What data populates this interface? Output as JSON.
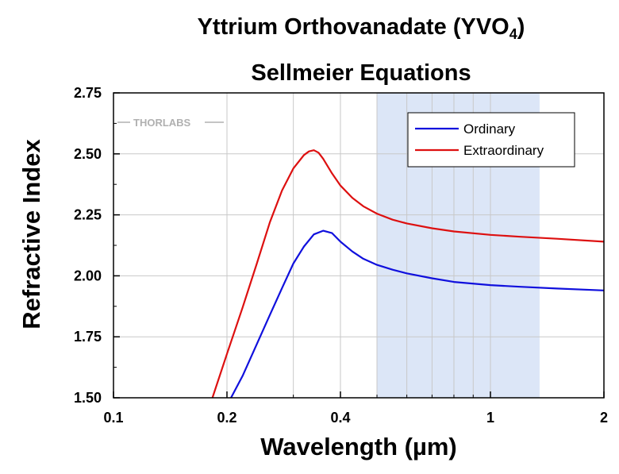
{
  "chart_data": {
    "type": "line",
    "title": "Yttrium Orthovanadate (YVO",
    "title_subscript": "4",
    "title_suffix": ")",
    "subtitle": "Sellmeier Equations",
    "xlabel": "Wavelength (µm)",
    "ylabel": "Refractive Index",
    "xscale": "log",
    "xlim": [
      0.1,
      2
    ],
    "ylim": [
      1.5,
      2.75
    ],
    "x_ticks": [
      0.1,
      0.2,
      0.4,
      1,
      2
    ],
    "x_tick_labels": [
      "0.1",
      "0.2",
      "0.4",
      "1",
      "2"
    ],
    "y_ticks": [
      1.5,
      1.75,
      2.0,
      2.25,
      2.5,
      2.75
    ],
    "y_tick_labels": [
      "1.50",
      "1.75",
      "2.00",
      "2.25",
      "2.50",
      "2.75"
    ],
    "grid": true,
    "legend_position": "top-right",
    "watermark": "THORLABS",
    "shaded_region": {
      "x": [
        0.5,
        1.35
      ],
      "color": "#dce6f7"
    },
    "series": [
      {
        "name": "Ordinary",
        "color": "#1010dd",
        "x": [
          0.205,
          0.22,
          0.24,
          0.26,
          0.28,
          0.3,
          0.32,
          0.34,
          0.36,
          0.38,
          0.4,
          0.43,
          0.46,
          0.5,
          0.55,
          0.6,
          0.7,
          0.8,
          1.0,
          1.2,
          1.5,
          2.0
        ],
        "y": [
          1.5,
          1.59,
          1.72,
          1.84,
          1.95,
          2.05,
          2.12,
          2.17,
          2.185,
          2.175,
          2.14,
          2.1,
          2.07,
          2.045,
          2.025,
          2.01,
          1.99,
          1.975,
          1.962,
          1.955,
          1.948,
          1.94
        ]
      },
      {
        "name": "Extraordinary",
        "color": "#dd1010",
        "x": [
          0.183,
          0.2,
          0.22,
          0.24,
          0.26,
          0.28,
          0.3,
          0.32,
          0.33,
          0.34,
          0.35,
          0.36,
          0.38,
          0.4,
          0.43,
          0.46,
          0.5,
          0.55,
          0.6,
          0.7,
          0.8,
          1.0,
          1.2,
          1.5,
          2.0
        ],
        "y": [
          1.5,
          1.68,
          1.87,
          2.05,
          2.22,
          2.35,
          2.44,
          2.495,
          2.51,
          2.515,
          2.505,
          2.48,
          2.42,
          2.37,
          2.32,
          2.285,
          2.255,
          2.23,
          2.215,
          2.195,
          2.182,
          2.168,
          2.16,
          2.152,
          2.14
        ]
      }
    ]
  }
}
